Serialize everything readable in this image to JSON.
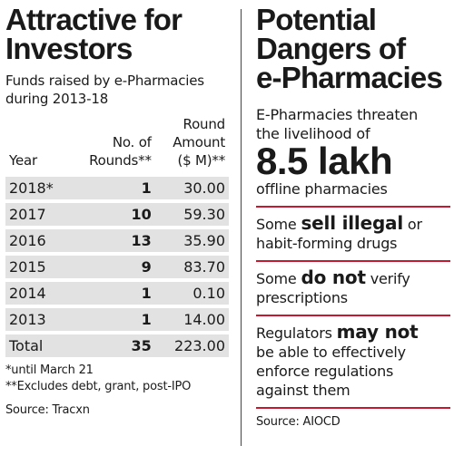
{
  "left": {
    "title_line1": "Attractive for",
    "title_line2": "Investors",
    "subtitle_line1": "Funds raised by e-Pharmacies",
    "subtitle_line2": "during 2013-18",
    "table": {
      "header_year": "Year",
      "header_rounds_line1": "No. of",
      "header_rounds_line2": "Rounds**",
      "header_amount_line1": "Round",
      "header_amount_line2": "Amount",
      "header_amount_line3": "($ M)**",
      "rows": [
        {
          "year": "2018*",
          "rounds": "1",
          "amount": "30.00"
        },
        {
          "year": "2017",
          "rounds": "10",
          "amount": "59.30"
        },
        {
          "year": "2016",
          "rounds": "13",
          "amount": "35.90"
        },
        {
          "year": "2015",
          "rounds": "9",
          "amount": "83.70"
        },
        {
          "year": "2014",
          "rounds": "1",
          "amount": "0.10"
        },
        {
          "year": "2013",
          "rounds": "1",
          "amount": "14.00"
        }
      ],
      "total": {
        "label": "Total",
        "rounds": "35",
        "amount": "223.00"
      }
    },
    "note1": "*until March 21",
    "note2": "**Excludes debt, grant, post-IPO",
    "source": "Source: Tracxn"
  },
  "right": {
    "title_line1": "Potential",
    "title_line2": "Dangers of",
    "title_line3": "e-Pharmacies",
    "block1_line1": "E-Pharmacies threaten",
    "block1_line2": "the livelihood of",
    "block1_big": "8.5 lakh",
    "block1_line3": "offline pharmacies",
    "block2_pre": "Some ",
    "block2_emph": "sell illegal",
    "block2_post": " or",
    "block2_line2": "habit-forming drugs",
    "block3_pre": "Some ",
    "block3_emph": "do not",
    "block3_post": " verify",
    "block3_line2": "prescriptions",
    "block4_pre": "Regulators ",
    "block4_emph": "may not",
    "block4_line2": "be able to effectively",
    "block4_line3": "enforce regulations",
    "block4_line4": "against them",
    "source": "Source: AIOCD"
  },
  "colors": {
    "rule": "#c21a2e",
    "row_shade": "#e2e2e2"
  }
}
